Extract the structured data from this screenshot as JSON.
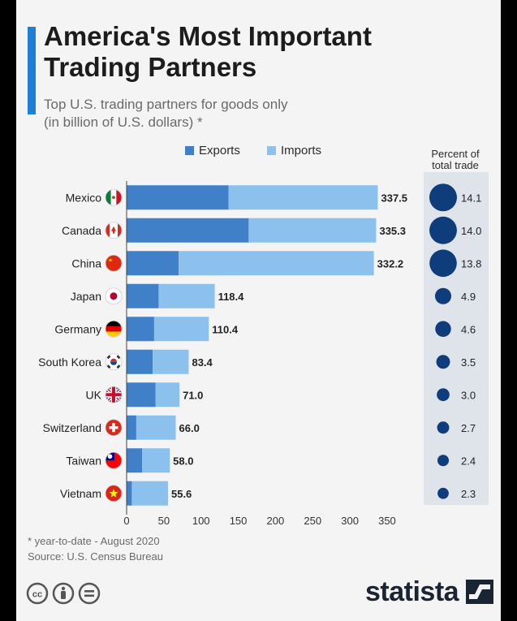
{
  "header": {
    "title": "America's Most Important\nTrading Partners",
    "subtitle": "Top U.S. trading partners for goods only\n(in billion of U.S. dollars) *"
  },
  "colors": {
    "accent": "#1e7fd8",
    "exports": "#3f80c9",
    "imports": "#8cc1ee",
    "bubble": "#0f3d7c",
    "panel": "#dfe3ea"
  },
  "chart_data": {
    "type": "bar",
    "stacked": true,
    "orientation": "horizontal",
    "categories": [
      "Mexico",
      "Canada",
      "China",
      "Japan",
      "Germany",
      "South Korea",
      "UK",
      "Switzerland",
      "Taiwan",
      "Vietnam"
    ],
    "series": [
      {
        "name": "Exports",
        "values": [
          137,
          164,
          70,
          43,
          37,
          35,
          39,
          13,
          21,
          7
        ]
      },
      {
        "name": "Imports",
        "values": [
          200.5,
          171.3,
          262.2,
          75.4,
          73.4,
          48.4,
          32.0,
          53.0,
          37.0,
          48.6
        ]
      }
    ],
    "totals": [
      "337.5",
      "335.3",
      "332.2",
      "118.4",
      "110.4",
      "83.4",
      "71.0",
      "66.0",
      "58.0",
      "55.6"
    ],
    "percent_title": "Percent of\ntotal trade",
    "percent_values": [
      14.1,
      14.0,
      13.8,
      4.9,
      4.6,
      3.5,
      3.0,
      2.7,
      2.4,
      2.3
    ],
    "percent_labels": [
      "14.1",
      "14.0",
      "13.8",
      "4.9",
      "4.6",
      "3.5",
      "3.0",
      "2.7",
      "2.4",
      "2.3"
    ],
    "flags": [
      "mexico-flag-icon",
      "canada-flag-icon",
      "china-flag-icon",
      "japan-flag-icon",
      "germany-flag-icon",
      "south-korea-flag-icon",
      "uk-flag-icon",
      "switzerland-flag-icon",
      "taiwan-flag-icon",
      "vietnam-flag-icon"
    ],
    "xticks": [
      0,
      50,
      100,
      150,
      200,
      250,
      300,
      350
    ],
    "xlim": [
      0,
      350
    ],
    "legend": "top",
    "xlabel": "",
    "ylabel": ""
  },
  "footer": {
    "note": "* year-to-date - August 2020",
    "source": "Source: U.S. Census Bureau"
  },
  "branding": {
    "logo": "statista",
    "license_icons": [
      "cc-icon",
      "attribution-icon",
      "no-derivatives-icon"
    ]
  }
}
